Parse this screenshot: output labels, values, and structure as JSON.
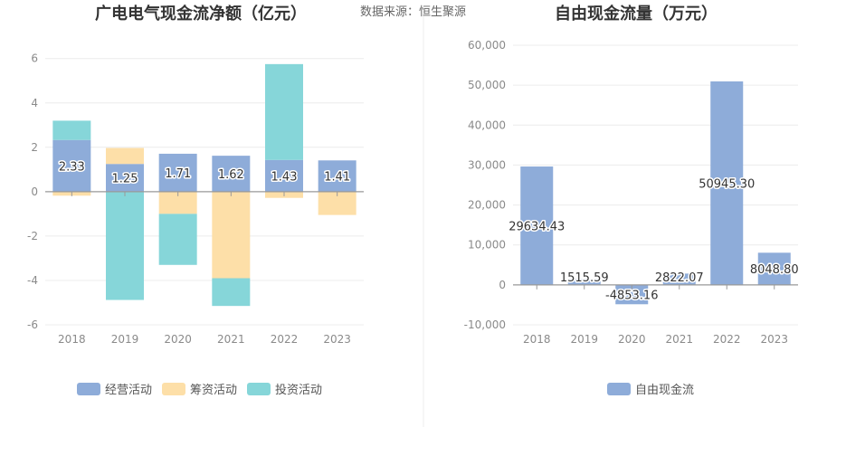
{
  "source_text": "数据来源：恒生聚源",
  "colors": {
    "operating": "#8eacd9",
    "financing": "#fddfa8",
    "investing": "#86d6d9",
    "free_cash_flow": "#8eacd9",
    "grid": "#ececec",
    "axis": "#999999",
    "divider": "#eeeeee"
  },
  "chart_data": [
    {
      "type": "bar",
      "stacked": true,
      "title": "广电电气现金流净额（亿元）",
      "categories": [
        "2018",
        "2019",
        "2020",
        "2021",
        "2022",
        "2023"
      ],
      "series": [
        {
          "name": "经营活动",
          "values": [
            2.33,
            1.25,
            1.71,
            1.62,
            1.43,
            1.41
          ],
          "color_key": "operating"
        },
        {
          "name": "筹资活动",
          "values": [
            -0.18,
            0.72,
            -1.0,
            -3.9,
            -0.28,
            -1.05
          ],
          "color_key": "financing"
        },
        {
          "name": "投资活动",
          "values": [
            0.87,
            -4.88,
            -2.3,
            -1.25,
            4.32,
            0.0
          ],
          "color_key": "investing"
        }
      ],
      "data_labels": [
        "2.33",
        "1.25",
        "1.71",
        "1.62",
        "1.43",
        "1.41"
      ],
      "yticks": [
        -6,
        -4,
        -2,
        0,
        2,
        4,
        6
      ],
      "ylim": [
        -6,
        6.6
      ],
      "grid": true,
      "legend": "bottom"
    },
    {
      "type": "bar",
      "title": "自由现金流量（万元）",
      "categories": [
        "2018",
        "2019",
        "2020",
        "2021",
        "2022",
        "2023"
      ],
      "series": [
        {
          "name": "自由现金流",
          "values": [
            29634.43,
            1515.59,
            -4853.16,
            2822.07,
            50945.3,
            8048.8
          ],
          "color_key": "free_cash_flow"
        }
      ],
      "data_labels": [
        "29634.43",
        "1515.59",
        "-4853.16",
        "2822.07",
        "50945.30",
        "8048.80"
      ],
      "yticks": [
        -10000,
        0,
        10000,
        20000,
        30000,
        40000,
        50000,
        60000
      ],
      "ytick_labels": [
        "-10,000",
        "0",
        "10,000",
        "20,000",
        "30,000",
        "40,000",
        "50,000",
        "60,000"
      ],
      "ylim": [
        -10000,
        60000
      ],
      "grid": true,
      "legend": "bottom"
    }
  ]
}
